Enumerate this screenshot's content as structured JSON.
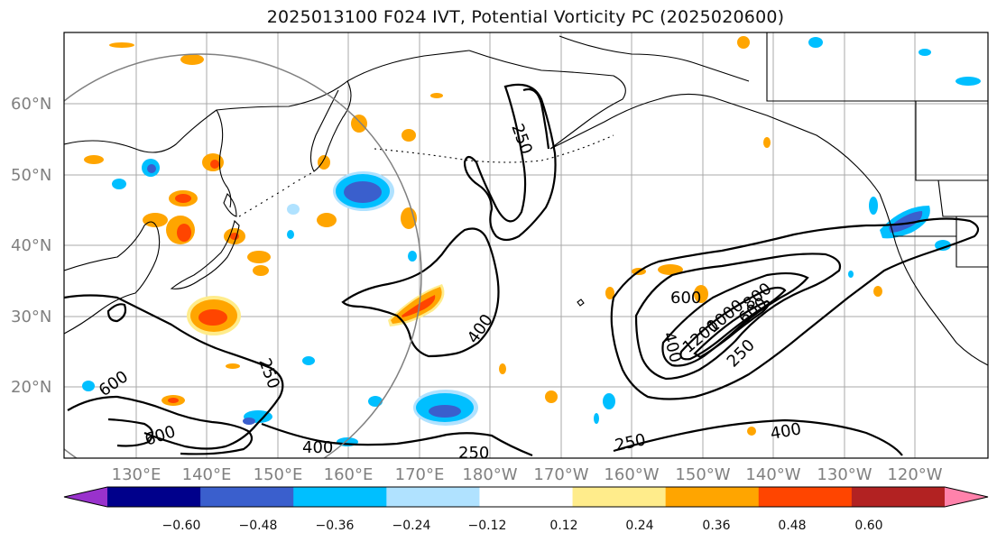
{
  "title": "2025013100 F024 IVT, Potential Vorticity PC (2025020600)",
  "lat_labels": [
    "60°N",
    "50°N",
    "40°N",
    "30°N",
    "20°N"
  ],
  "lon_labels": [
    "130°E",
    "140°E",
    "150°E",
    "160°E",
    "170°E",
    "180°W",
    "170°W",
    "160°W",
    "150°W",
    "140°W",
    "130°W",
    "120°W"
  ],
  "contour_labels": [
    "250",
    "400",
    "600",
    "250",
    "400",
    "600",
    "600",
    "400",
    "250",
    "400",
    "250",
    "250",
    "600",
    "800",
    "1000",
    "1200",
    "400",
    "250",
    "400"
  ],
  "colorbar": {
    "colors": [
      "#9932cc",
      "#00008b",
      "#3a5fcd",
      "#00bfff",
      "#b0e2ff",
      "#ffffff",
      "#ffec8b",
      "#ffa500",
      "#ff4500",
      "#b22222",
      "#ff82ab"
    ],
    "ticks": [
      "−0.60",
      "−0.48",
      "−0.36",
      "−0.24",
      "−0.12",
      "0.12",
      "0.24",
      "0.36",
      "0.48",
      "0.60"
    ]
  }
}
